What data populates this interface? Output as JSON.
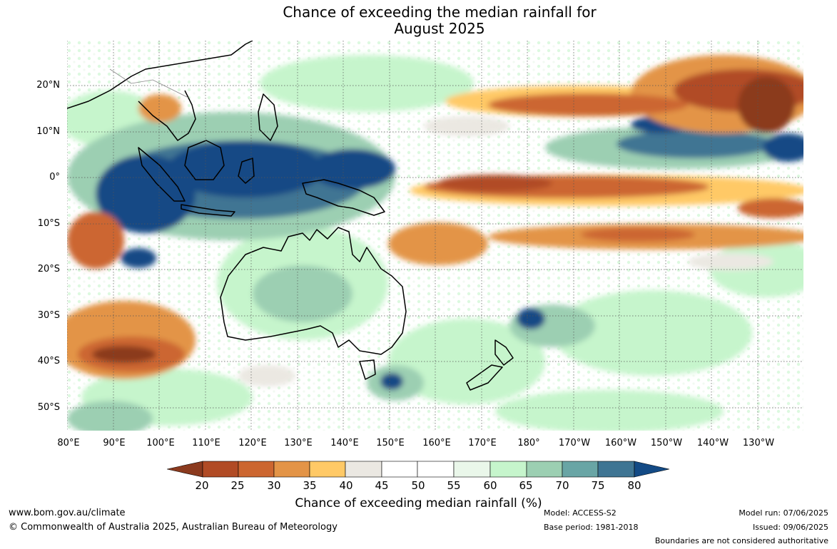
{
  "title_line1": "Chance of exceeding the median rainfall for",
  "title_line2": "August 2025",
  "lat_labels": [
    "20°N",
    "10°N",
    "0°",
    "10°S",
    "20°S",
    "30°S",
    "40°S",
    "50°S"
  ],
  "lon_labels": [
    "80°E",
    "90°E",
    "100°E",
    "110°E",
    "120°E",
    "130°E",
    "140°E",
    "150°E",
    "160°E",
    "170°E",
    "180°",
    "170°W",
    "160°W",
    "150°W",
    "140°W",
    "130°W"
  ],
  "legend": {
    "ticks": [
      "20",
      "25",
      "30",
      "35",
      "40",
      "45",
      "50",
      "55",
      "60",
      "65",
      "70",
      "75",
      "80"
    ],
    "label": "Chance of exceeding median rainfall (%)",
    "colors": [
      "#8b3a1e",
      "#b14b25",
      "#cc6630",
      "#e39447",
      "#ffc966",
      "#ebe8e2",
      "#ffffff",
      "#ffffff",
      "#eaf7ea",
      "#c6f5cc",
      "#9ccfb2",
      "#69a5a5",
      "#3f7593",
      "#134a85"
    ]
  },
  "map": {
    "scheme": "rainfall probability",
    "regions": [
      {
        "name": "maritime-continent-wet",
        "color": "#134a85"
      },
      {
        "name": "equatorial-pacific-dry",
        "color": "#cc6630"
      },
      {
        "name": "north-pacific-dry",
        "color": "#b14b25"
      },
      {
        "name": "australia-moderate-wet",
        "color": "#9ccfb2"
      },
      {
        "name": "indian-ocean-dry",
        "color": "#cc6630"
      }
    ]
  },
  "footer": {
    "url": "www.bom.gov.au/climate",
    "copyright": "© Commonwealth of Australia 2025, Australian Bureau of Meteorology",
    "model": "Model: ACCESS-S2",
    "base_period": "Base period: 1981-2018",
    "model_run": "Model run: 07/06/2025",
    "issued": "Issued: 09/06/2025",
    "disclaimer": "Boundaries are not considered authoritative"
  }
}
